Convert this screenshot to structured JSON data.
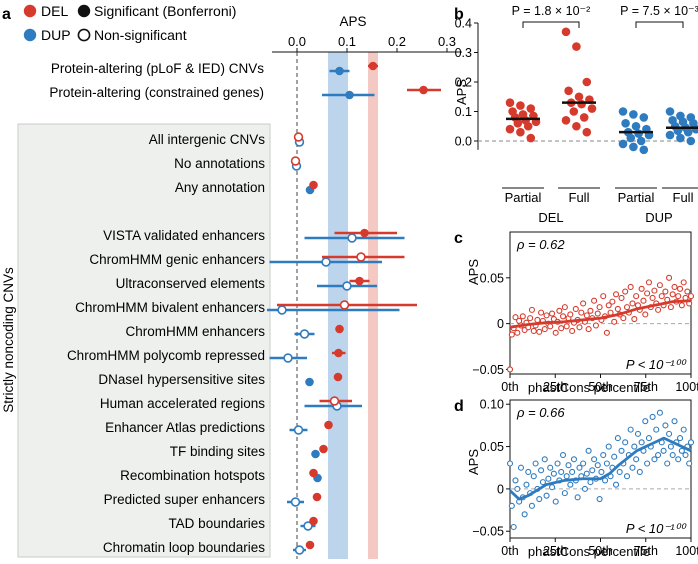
{
  "colors": {
    "del": "#d63a2c",
    "dup": "#2f7bbf",
    "panelBg": "#eef0ee",
    "band_del": "#f5c9c3",
    "band_dup": "#bcd5ec",
    "median": "#111111"
  },
  "chart_data": [
    {
      "panel": "a",
      "type": "scatter",
      "title": "APS",
      "x_ticks": [
        "0.0",
        "0.1",
        "0.2",
        "0.3"
      ],
      "xlim": [
        -0.05,
        0.33
      ],
      "legend": {
        "del": "DEL",
        "dup": "DUP",
        "sig": "Significant (Bonferroni)",
        "nonsig": "Non-significant"
      },
      "group_label": "Strictly noncoding CNVs",
      "bands": {
        "dup": [
          0.062,
          0.102
        ],
        "del": [
          0.142,
          0.162
        ]
      },
      "rows": [
        {
          "label": "Protein-altering (pLoF & IED) CNVs",
          "del": {
            "est": 0.152,
            "lo": 0.142,
            "hi": 0.162,
            "sig": true
          },
          "dup": {
            "est": 0.085,
            "lo": 0.065,
            "hi": 0.105,
            "sig": true
          }
        },
        {
          "label": "Protein-altering (constrained genes)",
          "del": {
            "est": 0.253,
            "lo": 0.22,
            "hi": 0.288,
            "sig": true
          },
          "dup": {
            "est": 0.105,
            "lo": 0.05,
            "hi": 0.155,
            "sig": true
          }
        },
        {
          "label": "All intergenic CNVs",
          "del": {
            "est": 0.003,
            "lo": -0.002,
            "hi": 0.008,
            "sig": false
          },
          "dup": {
            "est": 0.005,
            "lo": 0.0,
            "hi": 0.01,
            "sig": false
          }
        },
        {
          "label": "No annotations",
          "del": {
            "est": -0.003,
            "lo": -0.008,
            "hi": 0.002,
            "sig": false
          },
          "dup": {
            "est": -0.001,
            "lo": -0.006,
            "hi": 0.004,
            "sig": false
          }
        },
        {
          "label": "Any annotation",
          "del": {
            "est": 0.033,
            "lo": 0.028,
            "hi": 0.038,
            "sig": true
          },
          "dup": {
            "est": 0.026,
            "lo": 0.021,
            "hi": 0.031,
            "sig": true
          }
        },
        {
          "label": "VISTA validated enhancers",
          "del": {
            "est": 0.135,
            "lo": 0.075,
            "hi": 0.2,
            "sig": true
          },
          "dup": {
            "est": 0.11,
            "lo": 0.015,
            "hi": 0.215,
            "sig": false
          }
        },
        {
          "label": "ChromHMM genic enhancers",
          "del": {
            "est": 0.128,
            "lo": 0.05,
            "hi": 0.215,
            "sig": false
          },
          "dup": {
            "est": 0.058,
            "lo": -0.055,
            "hi": 0.17,
            "sig": false
          }
        },
        {
          "label": "Ultraconserved elements",
          "del": {
            "est": 0.125,
            "lo": 0.105,
            "hi": 0.145,
            "sig": true
          },
          "dup": {
            "est": 0.1,
            "lo": 0.04,
            "hi": 0.16,
            "sig": false
          }
        },
        {
          "label": "ChromHMM bivalent enhancers",
          "del": {
            "est": 0.095,
            "lo": -0.04,
            "hi": 0.24,
            "sig": false
          },
          "dup": {
            "est": -0.03,
            "lo": -0.06,
            "hi": 0.205,
            "sig": false
          }
        },
        {
          "label": "ChromHMM enhancers",
          "del": {
            "est": 0.085,
            "lo": 0.077,
            "hi": 0.093,
            "sig": true
          },
          "dup": {
            "est": 0.015,
            "lo": -0.005,
            "hi": 0.035,
            "sig": false
          }
        },
        {
          "label": "ChromHMM polycomb repressed",
          "del": {
            "est": 0.083,
            "lo": 0.07,
            "hi": 0.097,
            "sig": true
          },
          "dup": {
            "est": -0.018,
            "lo": -0.055,
            "hi": 0.02,
            "sig": false
          }
        },
        {
          "label": "DNaseI hypersensitive sites",
          "del": {
            "est": 0.082,
            "lo": 0.075,
            "hi": 0.089,
            "sig": true
          },
          "dup": {
            "est": 0.025,
            "lo": 0.018,
            "hi": 0.032,
            "sig": true
          }
        },
        {
          "label": "Human accelerated regions",
          "del": {
            "est": 0.075,
            "lo": 0.045,
            "hi": 0.11,
            "sig": false
          },
          "dup": {
            "est": 0.08,
            "lo": 0.015,
            "hi": 0.13,
            "sig": false
          }
        },
        {
          "label": "Enhancer Atlas predictions",
          "del": {
            "est": 0.063,
            "lo": 0.055,
            "hi": 0.071,
            "sig": true
          },
          "dup": {
            "est": 0.003,
            "lo": -0.015,
            "hi": 0.021,
            "sig": false
          }
        },
        {
          "label": "TF binding sites",
          "del": {
            "est": 0.053,
            "lo": 0.047,
            "hi": 0.059,
            "sig": true
          },
          "dup": {
            "est": 0.037,
            "lo": 0.031,
            "hi": 0.043,
            "sig": true
          }
        },
        {
          "label": "Recombination hotspots",
          "del": {
            "est": 0.033,
            "lo": 0.025,
            "hi": 0.041,
            "sig": true
          },
          "dup": {
            "est": 0.041,
            "lo": 0.033,
            "hi": 0.049,
            "sig": true
          }
        },
        {
          "label": "Predicted super enhancers",
          "del": {
            "est": 0.04,
            "lo": 0.033,
            "hi": 0.047,
            "sig": true
          },
          "dup": {
            "est": -0.003,
            "lo": -0.02,
            "hi": 0.014,
            "sig": false
          }
        },
        {
          "label": "TAD boundaries",
          "del": {
            "est": 0.033,
            "lo": 0.025,
            "hi": 0.041,
            "sig": true
          },
          "dup": {
            "est": 0.022,
            "lo": 0.007,
            "hi": 0.037,
            "sig": false
          }
        },
        {
          "label": "Chromatin loop boundaries",
          "del": {
            "est": 0.026,
            "lo": 0.018,
            "hi": 0.034,
            "sig": true
          },
          "dup": {
            "est": 0.005,
            "lo": -0.008,
            "hi": 0.018,
            "sig": false
          }
        }
      ]
    },
    {
      "panel": "b",
      "type": "scatter",
      "ylabel": "APS",
      "ylim": [
        -0.05,
        0.4
      ],
      "y_ticks": [
        "0.0",
        "0.1",
        "0.2",
        "0.3",
        "0.4"
      ],
      "annotations": [
        "P = 1.8 × 10⁻²",
        "P = 7.5 × 10⁻³"
      ],
      "groups": [
        "DEL",
        "DUP"
      ],
      "categories": [
        "Partial",
        "Full",
        "Partial",
        "Full"
      ],
      "series": [
        {
          "name": "DEL Partial",
          "median": 0.075,
          "values": [
            0.13,
            0.12,
            0.11,
            0.1,
            0.09,
            0.085,
            0.08,
            0.07,
            0.065,
            0.06,
            0.05,
            0.04,
            0.03,
            0.01
          ]
        },
        {
          "name": "DEL Full",
          "median": 0.13,
          "values": [
            0.37,
            0.32,
            0.2,
            0.17,
            0.15,
            0.14,
            0.13,
            0.125,
            0.11,
            0.1,
            0.08,
            0.07,
            0.05,
            0.03
          ]
        },
        {
          "name": "DUP Partial",
          "median": 0.03,
          "values": [
            0.1,
            0.09,
            0.08,
            0.06,
            0.05,
            0.04,
            0.03,
            0.025,
            0.02,
            0.01,
            0.0,
            -0.01,
            -0.02,
            -0.03
          ]
        },
        {
          "name": "DUP Full",
          "median": 0.045,
          "values": [
            0.1,
            0.085,
            0.08,
            0.07,
            0.065,
            0.06,
            0.05,
            0.045,
            0.04,
            0.035,
            0.03,
            0.02,
            0.01,
            0.0
          ]
        }
      ]
    },
    {
      "panel": "c",
      "type": "scatter",
      "annotation_rho": "ρ = 0.62",
      "annotation_p": "P < 10⁻¹⁰⁰",
      "xlabel": "phastCons percentile",
      "ylabel": "APS",
      "x_ticks": [
        "0th",
        "25th",
        "50th",
        "75th",
        "100th"
      ],
      "y_ticks": [
        "0.05",
        "0",
        "−0.05"
      ],
      "ylim": [
        -0.055,
        0.1
      ],
      "trend": [
        [
          0,
          -0.004
        ],
        [
          10,
          -0.001
        ],
        [
          20,
          0.001
        ],
        [
          30,
          0.002
        ],
        [
          40,
          0.004
        ],
        [
          50,
          0.006
        ],
        [
          60,
          0.01
        ],
        [
          70,
          0.016
        ],
        [
          80,
          0.02
        ],
        [
          90,
          0.024
        ],
        [
          100,
          0.025
        ]
      ],
      "values": [
        -0.05,
        -0.012,
        -0.005,
        0.007,
        -0.01,
        0.003,
        -0.002,
        0.008,
        -0.007,
        0.001,
        -0.004,
        0.006,
        0.015,
        -0.008,
        -0.002,
        0.004,
        -0.009,
        0.012,
        0.003,
        -0.006,
        0.009,
        0.0,
        -0.003,
        0.011,
        0.005,
        -0.01,
        0.002,
        0.014,
        -0.005,
        0.008,
        0.018,
        -0.003,
        0.006,
        0.01,
        -0.008,
        0.001,
        0.016,
        0.004,
        -0.004,
        0.012,
        0.022,
        0.002,
        0.009,
        -0.006,
        0.014,
        0.006,
        0.025,
        -0.002,
        0.011,
        0.018,
        0.004,
        0.03,
        0.008,
        -0.01,
        0.02,
        0.012,
        0.024,
        0.002,
        0.032,
        0.016,
        0.01,
        0.028,
        0.006,
        0.035,
        0.018,
        0.012,
        0.04,
        0.022,
        0.005,
        0.03,
        0.02,
        0.015,
        0.038,
        0.025,
        0.01,
        0.033,
        0.045,
        0.018,
        0.028,
        0.036,
        0.022,
        0.015,
        0.042,
        0.03,
        0.02,
        0.035,
        0.026,
        0.05,
        0.018,
        0.032,
        0.04,
        0.024,
        0.03,
        0.038,
        0.02,
        0.045,
        0.028,
        0.035,
        0.022,
        0.03
      ]
    },
    {
      "panel": "d",
      "type": "scatter",
      "annotation_rho": "ρ = 0.66",
      "annotation_p": "P < 10⁻¹⁰⁰",
      "xlabel": "phastCons percentile",
      "ylabel": "APS",
      "x_ticks": [
        "0th",
        "25th",
        "50th",
        "75th",
        "100th"
      ],
      "y_ticks": [
        "0.10",
        "0.05",
        "0",
        "−0.05"
      ],
      "ylim": [
        -0.058,
        0.105
      ],
      "trend": [
        [
          0,
          -0.002
        ],
        [
          5,
          -0.012
        ],
        [
          10,
          -0.008
        ],
        [
          20,
          0.005
        ],
        [
          30,
          0.01
        ],
        [
          40,
          0.012
        ],
        [
          50,
          0.012
        ],
        [
          55,
          0.018
        ],
        [
          60,
          0.028
        ],
        [
          70,
          0.045
        ],
        [
          80,
          0.055
        ],
        [
          85,
          0.06
        ],
        [
          90,
          0.055
        ],
        [
          100,
          0.045
        ]
      ],
      "values": [
        0.03,
        -0.02,
        -0.045,
        0.01,
        0.0,
        -0.015,
        0.025,
        -0.01,
        -0.03,
        0.005,
        0.02,
        -0.005,
        -0.02,
        0.015,
        0.03,
        0.0,
        -0.012,
        0.022,
        0.008,
        0.035,
        -0.008,
        0.012,
        0.025,
        0.002,
        0.018,
        -0.015,
        0.03,
        0.01,
        0.02,
        0.04,
        -0.005,
        0.015,
        0.028,
        0.005,
        0.02,
        0.035,
        0.01,
        -0.01,
        0.025,
        0.015,
        0.03,
        0.0,
        0.018,
        0.045,
        0.008,
        0.022,
        0.035,
        0.012,
        0.028,
        -0.012,
        0.02,
        0.04,
        0.01,
        0.03,
        0.05,
        0.015,
        0.025,
        0.038,
        0.005,
        0.06,
        0.02,
        0.045,
        0.03,
        0.055,
        0.015,
        0.04,
        0.07,
        0.025,
        0.05,
        0.035,
        0.065,
        0.02,
        0.055,
        0.045,
        0.08,
        0.03,
        0.06,
        0.05,
        0.085,
        0.035,
        0.07,
        0.04,
        0.09,
        0.055,
        0.045,
        0.075,
        0.03,
        0.065,
        0.05,
        0.04,
        0.08,
        0.055,
        0.035,
        0.06,
        0.045,
        0.07,
        0.04,
        0.05,
        0.03,
        0.055
      ]
    }
  ],
  "labels": {
    "panel_a": "a",
    "panel_b": "b",
    "panel_c": "c",
    "panel_d": "d",
    "del": "DEL",
    "dup": "DUP",
    "sig": "Significant (Bonferroni)",
    "nonsig": "Non-significant",
    "aps": "APS",
    "partial": "Partial",
    "full": "Full",
    "xlabel_c": "phastCons percentile",
    "xlabel_d": "phastCons percentile",
    "group_label": "Strictly noncoding CNVs"
  }
}
